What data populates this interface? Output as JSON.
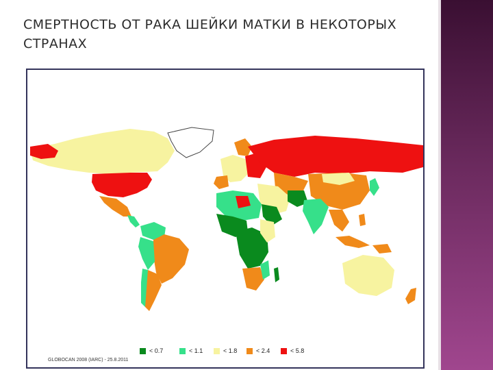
{
  "slide": {
    "title": "СМЕРТНОСТЬ  ОТ РАКА ШЕЙКИ МАТКИ В НЕКОТОРЫХ СТРАНАХ"
  },
  "map": {
    "legend": [
      {
        "label": "< 0.7",
        "color": "#0a8a1e"
      },
      {
        "label": "< 1.1",
        "color": "#36e08a"
      },
      {
        "label": "< 1.8",
        "color": "#f7f3a0"
      },
      {
        "label": "< 2.4",
        "color": "#f08a1a"
      },
      {
        "label": "< 5.8",
        "color": "#ee1111"
      }
    ],
    "source": "GLOBOCAN 2008 (IARC) - 25.8.2011"
  },
  "colors": {
    "band_top": "#3a0f32",
    "band_bottom": "#a0468e",
    "frame": "#33335a"
  }
}
